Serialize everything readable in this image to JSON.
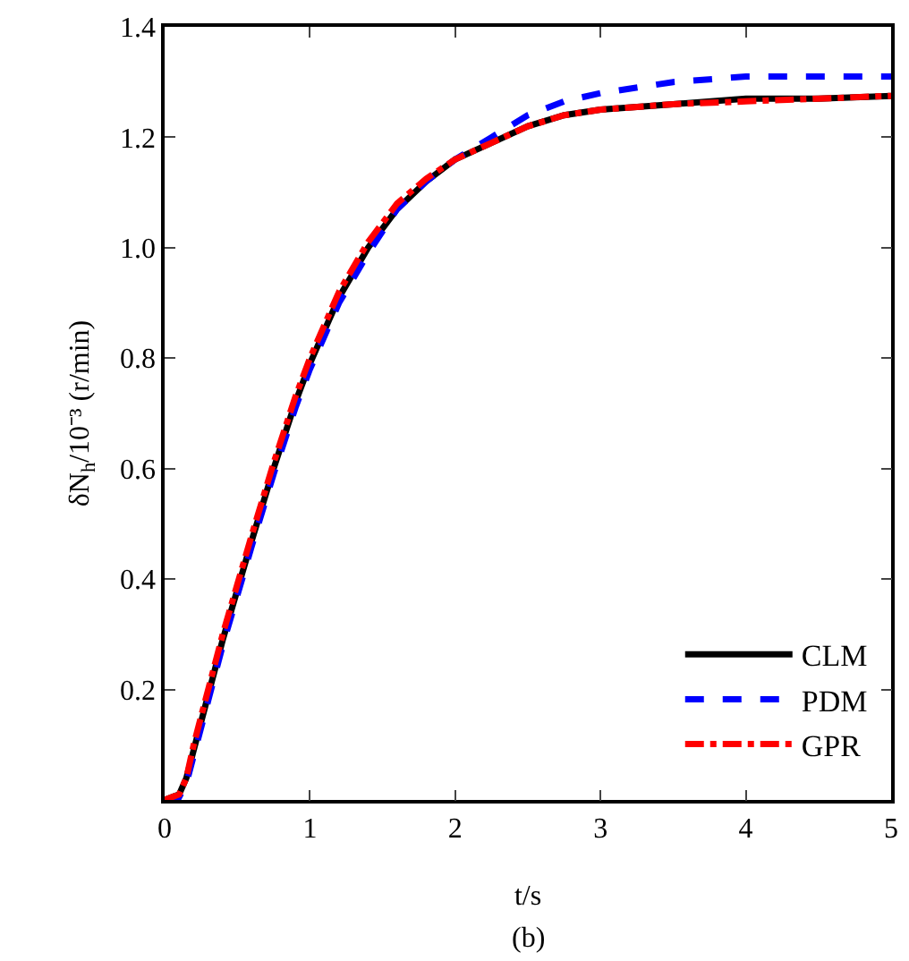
{
  "chart_data": {
    "type": "line",
    "xlabel": "t/s",
    "ylabel": "δN$_{h}$/10⁻³ (r/min)",
    "annotations": [
      "(b)"
    ],
    "x": [
      0,
      0.1,
      0.15,
      0.2,
      0.3,
      0.4,
      0.5,
      0.6,
      0.75,
      0.9,
      1,
      1.2,
      1.4,
      1.6,
      1.8,
      2,
      2.25,
      2.5,
      2.75,
      3,
      3.5,
      4,
      4.5,
      5
    ],
    "series": [
      {
        "name": "CLM",
        "color": "#000000",
        "line_style": "solid",
        "values": [
          0,
          0.01,
          0.04,
          0.09,
          0.19,
          0.29,
          0.38,
          0.47,
          0.6,
          0.72,
          0.79,
          0.91,
          1.0,
          1.07,
          1.12,
          1.16,
          1.19,
          1.22,
          1.24,
          1.25,
          1.26,
          1.27,
          1.27,
          1.275
        ]
      },
      {
        "name": "PDM",
        "color": "#0000ff",
        "line_style": "dashed",
        "values": [
          0,
          0.005,
          0.03,
          0.08,
          0.18,
          0.28,
          0.37,
          0.46,
          0.59,
          0.71,
          0.78,
          0.9,
          0.99,
          1.07,
          1.12,
          1.16,
          1.2,
          1.24,
          1.265,
          1.28,
          1.3,
          1.31,
          1.31,
          1.31
        ]
      },
      {
        "name": "GPR",
        "color": "#ff0000",
        "line_style": "dashdot",
        "values": [
          0,
          0.01,
          0.04,
          0.1,
          0.2,
          0.3,
          0.39,
          0.48,
          0.61,
          0.73,
          0.8,
          0.92,
          1.01,
          1.08,
          1.125,
          1.16,
          1.19,
          1.22,
          1.24,
          1.25,
          1.26,
          1.265,
          1.27,
          1.275
        ]
      }
    ],
    "xlim": [
      0,
      5
    ],
    "xticks": [
      0,
      1,
      2,
      3,
      4,
      5
    ],
    "ylim": [
      0,
      1.4
    ],
    "yticks": [
      0.2,
      0.4,
      0.6,
      0.8,
      {
        "value": 1,
        "label": "1.0"
      },
      1.2,
      1.4
    ],
    "grid": false,
    "legend": "bottom right",
    "marker": "none"
  }
}
